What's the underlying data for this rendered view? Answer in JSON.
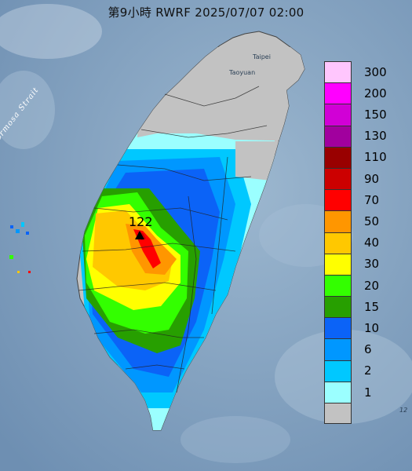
{
  "map": {
    "title": "第9小時  RWRF 2025/07/07 02:00",
    "strait_label": "Formosa Strait",
    "places": {
      "taipei": "Taipei",
      "taoyuan": "Taoyuan"
    },
    "peak_label": "122",
    "edge_label": "12",
    "legend": [
      {
        "label": "300",
        "color": "#ffc6fd"
      },
      {
        "label": "200",
        "color": "#ff00ff"
      },
      {
        "label": "150",
        "color": "#d100d6"
      },
      {
        "label": "130",
        "color": "#a1009e"
      },
      {
        "label": "110",
        "color": "#990000"
      },
      {
        "label": "90",
        "color": "#cc0000"
      },
      {
        "label": "70",
        "color": "#ff0000"
      },
      {
        "label": "50",
        "color": "#ff9600"
      },
      {
        "label": "40",
        "color": "#ffc800"
      },
      {
        "label": "30",
        "color": "#ffff00"
      },
      {
        "label": "20",
        "color": "#33ff00"
      },
      {
        "label": "15",
        "color": "#279f00"
      },
      {
        "label": "10",
        "color": "#0b63f7"
      },
      {
        "label": "6",
        "color": "#0097ff"
      },
      {
        "label": "2",
        "color": "#00c8ff"
      },
      {
        "label": "1",
        "color": "#9bffff"
      },
      {
        "label": "",
        "color": "#c2c2c2"
      }
    ]
  }
}
